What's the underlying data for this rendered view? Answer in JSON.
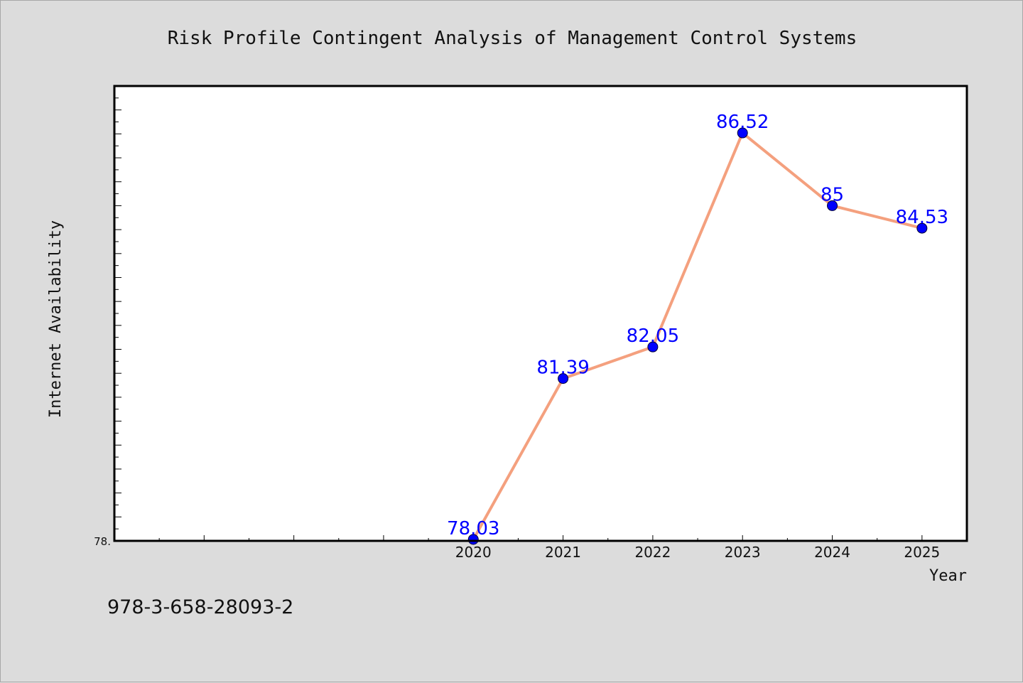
{
  "chart_data": {
    "type": "line",
    "title": "Risk Profile Contingent Analysis of Management Control Systems",
    "xlabel": "Year",
    "ylabel": "Internet Availability",
    "categories": [
      "2020",
      "2021",
      "2022",
      "2023",
      "2024",
      "2025"
    ],
    "series": [
      {
        "values": [
          78.03,
          81.39,
          82.05,
          86.52,
          85,
          84.53
        ],
        "labels": [
          "78.03",
          "81.39",
          "82.05",
          "86.52",
          "85",
          "84.53"
        ]
      }
    ],
    "x_range": [
      "2016",
      "2025.5"
    ],
    "ylim": [
      78,
      87.5
    ],
    "y_tick_label": "78.",
    "grid": false,
    "legend": "none",
    "colors": {
      "line": "#f4a07e",
      "marker": "#0000ff",
      "data_label": "#0000ff",
      "background": "#dcdcdc",
      "plot_background": "#ffffff"
    }
  },
  "footer": {
    "isbn": "978-3-658-28093-2"
  }
}
